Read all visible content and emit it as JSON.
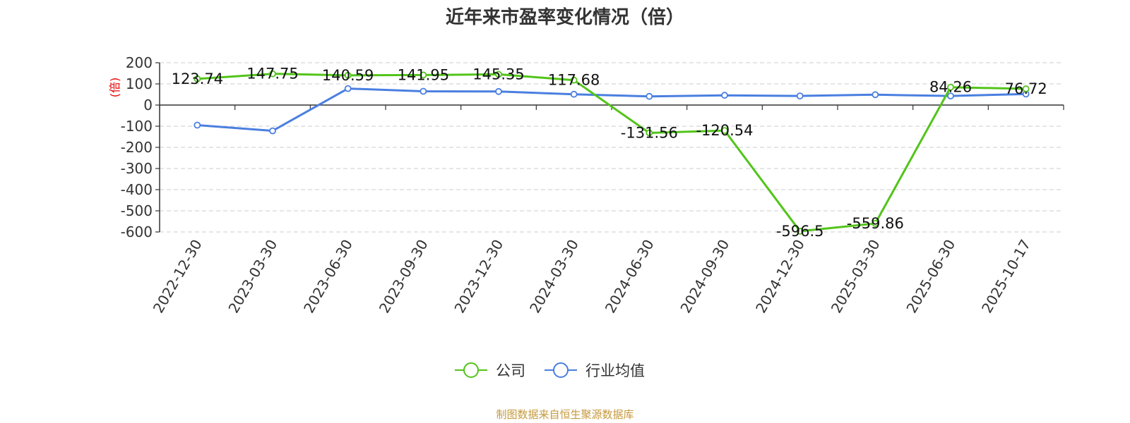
{
  "chart_data": {
    "type": "line",
    "title": "近年来市盈率变化情况（倍）",
    "ylabel": "(倍)",
    "xlabel": "",
    "ylim": [
      -600,
      200
    ],
    "yticks": [
      200,
      100,
      0,
      -100,
      -200,
      -300,
      -400,
      -500,
      -600
    ],
    "grid": true,
    "legend_position": "bottom-center",
    "categories": [
      "2022-12-30",
      "2023-03-30",
      "2023-06-30",
      "2023-09-30",
      "2023-12-30",
      "2024-03-30",
      "2024-06-30",
      "2024-09-30",
      "2024-12-30",
      "2025-03-30",
      "2025-06-30",
      "2025-10-17"
    ],
    "series": [
      {
        "name": "公司",
        "color": "#52c41a",
        "values": [
          123.74,
          147.75,
          140.59,
          141.95,
          145.35,
          117.68,
          -131.56,
          -120.54,
          -596.5,
          -559.86,
          84.26,
          76.72
        ],
        "labels": [
          "123.74",
          "147.75",
          "140.59",
          "141.95",
          "145.35",
          "117.68",
          "-131.56",
          "-120.54",
          "-596.5",
          "-559.86",
          "84.26",
          "76.72"
        ]
      },
      {
        "name": "行业均值",
        "color": "#4a7fe0",
        "values": [
          -95,
          -122,
          78,
          65,
          64,
          51,
          41,
          46,
          43,
          49,
          43,
          52
        ]
      }
    ],
    "source": "制图数据来自恒生聚源数据库"
  }
}
